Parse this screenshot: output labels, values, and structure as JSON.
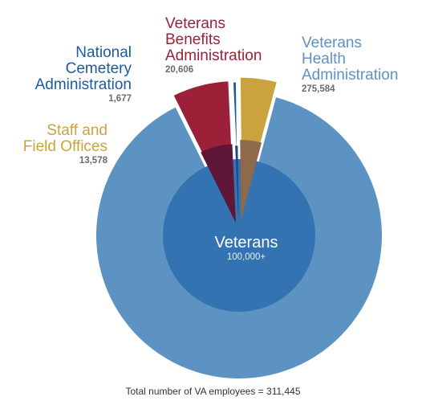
{
  "chart_data": {
    "type": "pie",
    "title": "",
    "slices": [
      {
        "name": "Veterans Health Administration",
        "name_lines": "Veterans\nHealth\nAdministration",
        "value": 275584,
        "value_label": "275,584",
        "color": "#5d93c2",
        "inner_color": "#3473b2"
      },
      {
        "name": "Veterans Benefits Administration",
        "name_lines": "Veterans\nBenefits\nAdministration",
        "value": 20606,
        "value_label": "20,606",
        "color": "#9c2038",
        "inner_color": "#5f1737"
      },
      {
        "name": "National Cemetery Administration",
        "name_lines": "National\nCemetery\nAdministration",
        "value": 1677,
        "value_label": "1,677",
        "color": "#1c5a9c",
        "inner_color": "#23497e"
      },
      {
        "name": "Staff and Field Offices",
        "name_lines": "Staff and\nField Offices",
        "value": 13578,
        "value_label": "13,578",
        "color": "#c9a43e",
        "inner_color": "#8f6a4a"
      }
    ],
    "inner_circle": {
      "name": "Veterans",
      "value_label": "100,000+"
    },
    "total_note": "Total number of VA employees = 311,445"
  }
}
